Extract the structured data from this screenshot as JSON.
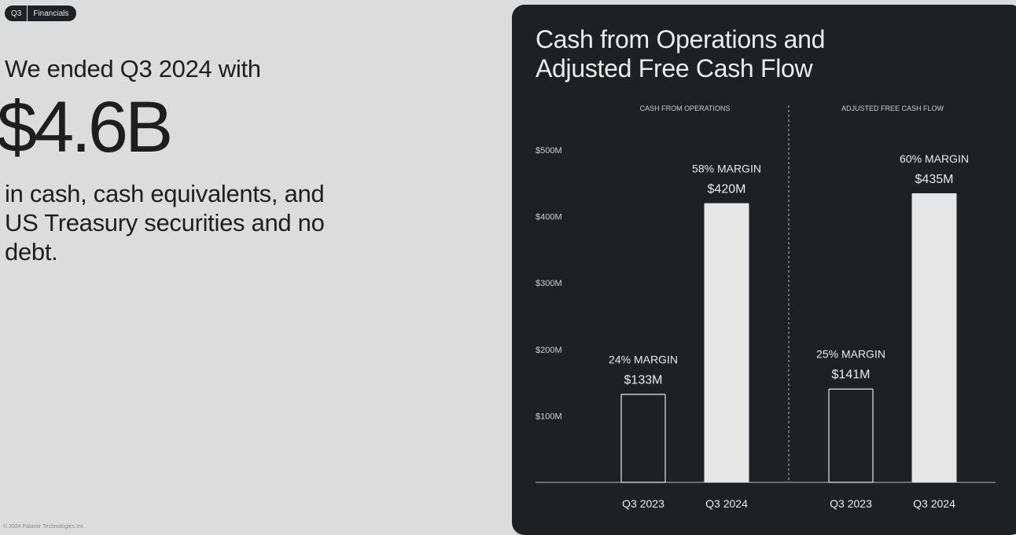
{
  "badge": {
    "quarter": "Q3",
    "section": "Financials"
  },
  "left": {
    "headline": "We ended Q3 2024 with",
    "amount": "$4.6B",
    "description": "in cash, cash equivalents, and US Treasury securities and no debt.",
    "footer": "© 2024 Palantir Technologies Inc."
  },
  "panel": {
    "title": "Cash from Operations and Adjusted Free Cash Flow"
  },
  "colors": {
    "background": "#dcdcdc",
    "panel": "#1f2021",
    "bar_filled": "#e6e6e6",
    "bar_outline": "#e6e6e6",
    "text_light": "#ececec"
  },
  "chart_data": {
    "type": "bar",
    "y_ticks": [
      "$100M",
      "$200M",
      "$300M",
      "$400M",
      "$500M"
    ],
    "y_tick_values": [
      100,
      200,
      300,
      400,
      500
    ],
    "ylim": [
      0,
      500
    ],
    "grid": false,
    "groups": [
      {
        "name": "CASH FROM OPERATIONS",
        "bars": [
          {
            "category": "Q3 2023",
            "value": 133,
            "value_label": "$133M",
            "margin_label": "24% MARGIN",
            "style": "outline"
          },
          {
            "category": "Q3 2024",
            "value": 420,
            "value_label": "$420M",
            "margin_label": "58% MARGIN",
            "style": "filled"
          }
        ]
      },
      {
        "name": "ADJUSTED FREE CASH FLOW",
        "bars": [
          {
            "category": "Q3 2023",
            "value": 141,
            "value_label": "$141M",
            "margin_label": "25% MARGIN",
            "style": "outline"
          },
          {
            "category": "Q3 2024",
            "value": 435,
            "value_label": "$435M",
            "margin_label": "60% MARGIN",
            "style": "filled"
          }
        ]
      }
    ]
  }
}
